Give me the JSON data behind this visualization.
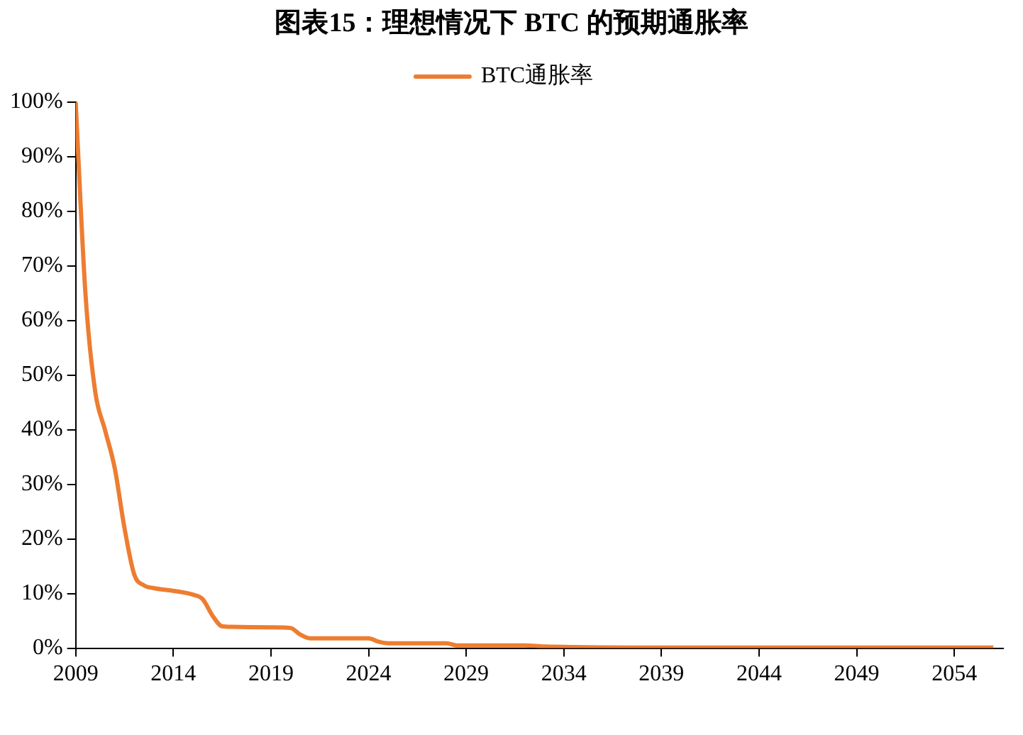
{
  "chart_data": {
    "type": "line",
    "title": "图表15：理想情况下 BTC 的预期通胀率",
    "x": [
      2009,
      2009.5,
      2010,
      2010.5,
      2011,
      2011.5,
      2012,
      2012.5,
      2013,
      2014,
      2015,
      2015.5,
      2016,
      2016.5,
      2017,
      2019,
      2020,
      2020.5,
      2021,
      2024,
      2024.5,
      2025,
      2028,
      2028.5,
      2032,
      2033,
      2040,
      2056
    ],
    "series": [
      {
        "name": "BTC通胀率",
        "color": "#ed7d31",
        "values": [
          100,
          65,
          47,
          40,
          33,
          22,
          13.5,
          11.5,
          11,
          10.5,
          9.8,
          9,
          6,
          4,
          3.9,
          3.8,
          3.7,
          2.5,
          1.8,
          1.8,
          1.2,
          0.9,
          0.9,
          0.5,
          0.5,
          0.3,
          0.1,
          0.1
        ]
      }
    ],
    "xlim": [
      2009,
      2056.5
    ],
    "xticks": [
      2009,
      2014,
      2019,
      2024,
      2029,
      2034,
      2039,
      2044,
      2049,
      2054
    ],
    "ylim": [
      0,
      100
    ],
    "yticks": [
      {
        "value": 0,
        "label": "0%"
      },
      {
        "value": 10,
        "label": "10%"
      },
      {
        "value": 20,
        "label": "20%"
      },
      {
        "value": 30,
        "label": "30%"
      },
      {
        "value": 40,
        "label": "40%"
      },
      {
        "value": 50,
        "label": "50%"
      },
      {
        "value": 60,
        "label": "60%"
      },
      {
        "value": 70,
        "label": "70%"
      },
      {
        "value": 80,
        "label": "80%"
      },
      {
        "value": 90,
        "label": "90%"
      },
      {
        "value": 100,
        "label": "100%"
      }
    ],
    "grid": false,
    "legend": "top",
    "marker": "none",
    "line_style": "solid"
  }
}
